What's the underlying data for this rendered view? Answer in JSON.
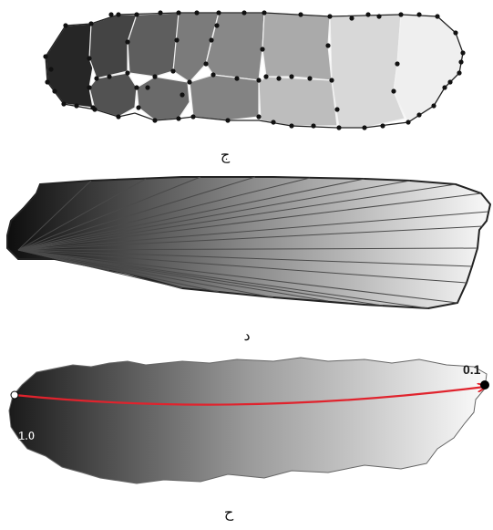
{
  "panels": [
    {
      "caption": "ج"
    },
    {
      "caption": "د"
    },
    {
      "caption": "ح"
    }
  ],
  "gradient": {
    "dark": "#1c1c1c",
    "light": "#fafafa",
    "segment_shades": [
      "#262626",
      "#454545",
      "#5a5a5a",
      "#717171",
      "#8a8a8a",
      "#a0a0a0",
      "#bdbdbd",
      "#d9d9d9",
      "#efefef"
    ]
  },
  "path_annotation": {
    "start_value": "1.0",
    "end_value": "0.1",
    "arrow_color": "#e0232d",
    "start_marker_color": "#ffffff",
    "end_marker_color": "#000000"
  }
}
